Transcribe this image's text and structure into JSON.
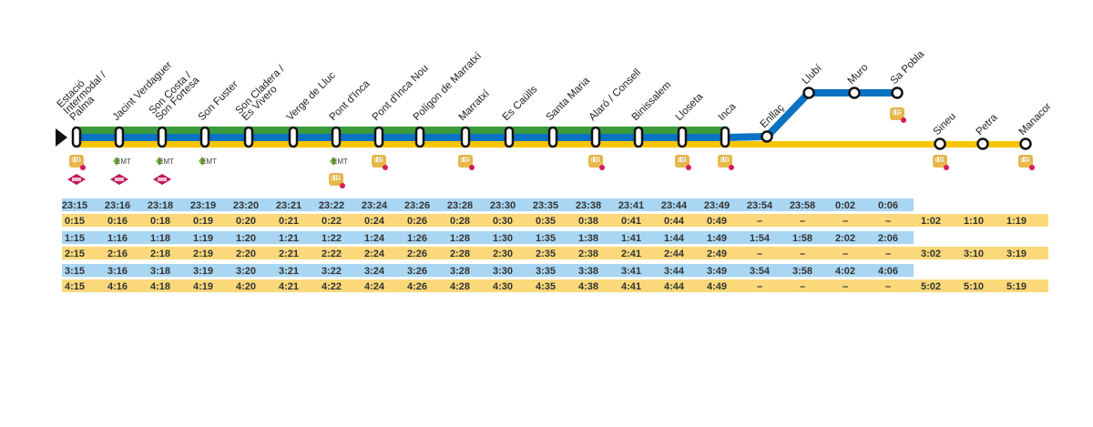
{
  "colors": {
    "green": "#3a9a3c",
    "blue": "#0a72c3",
    "yellow": "#f7c600",
    "row_blue": "#a9d6f2",
    "row_yellow": "#fbd97a",
    "emt": "#7dbb42",
    "tib": "#e8b84a",
    "metro": "#c2185b"
  },
  "stations": [
    {
      "name": [
        "Estació",
        "Intermodal /",
        "Palma"
      ],
      "icons": [
        "tib-bus",
        "metro"
      ]
    },
    {
      "name": [
        "Jacint Verdaguer"
      ],
      "icons": [
        "emt",
        "metro"
      ]
    },
    {
      "name": [
        "Son Costa /",
        "Son Fortesa"
      ],
      "icons": [
        "emt",
        "metro"
      ]
    },
    {
      "name": [
        "Son Fuster"
      ],
      "icons": [
        "emt"
      ]
    },
    {
      "name": [
        "Son Cladera /",
        "Es Vivero"
      ],
      "icons": []
    },
    {
      "name": [
        "Verge de Lluc"
      ],
      "icons": []
    },
    {
      "name": [
        "Pont d'Inca"
      ],
      "icons": [
        "emt",
        "tib-bus"
      ]
    },
    {
      "name": [
        "Pont d'Inca Nou"
      ],
      "icons": [
        "tib-bus"
      ]
    },
    {
      "name": [
        "Polígon de Marratxí"
      ],
      "icons": []
    },
    {
      "name": [
        "Marratxí"
      ],
      "icons": [
        "tib-bus"
      ]
    },
    {
      "name": [
        "Es Caülls"
      ],
      "icons": []
    },
    {
      "name": [
        "Santa Maria"
      ],
      "icons": []
    },
    {
      "name": [
        "Alaró / Consell"
      ],
      "icons": [
        "tib-bus"
      ]
    },
    {
      "name": [
        "Binissalem"
      ],
      "icons": []
    },
    {
      "name": [
        "Lloseta"
      ],
      "icons": [
        "tib-bus"
      ]
    },
    {
      "name": [
        "Inca"
      ],
      "icons": [
        "tib-bus"
      ]
    },
    {
      "name": [
        "Enllaç"
      ],
      "icons": []
    },
    {
      "name": [
        "Llubí"
      ],
      "icons": []
    },
    {
      "name": [
        "Muro"
      ],
      "icons": []
    },
    {
      "name": [
        "Sa Pobla"
      ],
      "icons": [
        "tib-bus"
      ]
    },
    {
      "name": [
        "Sineu"
      ],
      "icons": [
        "tib-bus"
      ]
    },
    {
      "name": [
        "Petra"
      ],
      "icons": []
    },
    {
      "name": [
        "Manacor"
      ],
      "icons": [
        "tib-bus"
      ]
    }
  ],
  "timetable": [
    {
      "line": "blue",
      "times": [
        "23:15",
        "23:16",
        "23:18",
        "23:19",
        "23:20",
        "23:21",
        "23:22",
        "23:24",
        "23:26",
        "23:28",
        "23:30",
        "23:35",
        "23:38",
        "23:41",
        "23:44",
        "23:49",
        "23:54",
        "23:58",
        "0:02",
        "0:06"
      ]
    },
    {
      "line": "yellow",
      "times": [
        "0:15",
        "0:16",
        "0:18",
        "0:19",
        "0:20",
        "0:21",
        "0:22",
        "0:24",
        "0:26",
        "0:28",
        "0:30",
        "0:35",
        "0:38",
        "0:41",
        "0:44",
        "0:49",
        "–",
        "–",
        "–",
        "–",
        "1:02",
        "1:10",
        "1:19"
      ]
    },
    {
      "line": "blue",
      "times": [
        "1:15",
        "1:16",
        "1:18",
        "1:19",
        "1:20",
        "1:21",
        "1:22",
        "1:24",
        "1:26",
        "1:28",
        "1:30",
        "1:35",
        "1:38",
        "1:41",
        "1:44",
        "1:49",
        "1:54",
        "1:58",
        "2:02",
        "2:06"
      ]
    },
    {
      "line": "yellow",
      "times": [
        "2:15",
        "2:16",
        "2:18",
        "2:19",
        "2:20",
        "2:21",
        "2:22",
        "2:24",
        "2:26",
        "2:28",
        "2:30",
        "2:35",
        "2:38",
        "2:41",
        "2:44",
        "2:49",
        "–",
        "–",
        "–",
        "–",
        "3:02",
        "3:10",
        "3:19"
      ]
    },
    {
      "line": "blue",
      "times": [
        "3:15",
        "3:16",
        "3:18",
        "3:19",
        "3:20",
        "3:21",
        "3:22",
        "3:24",
        "3:26",
        "3:28",
        "3:30",
        "3:35",
        "3:38",
        "3:41",
        "3:44",
        "3:49",
        "3:54",
        "3:58",
        "4:02",
        "4:06"
      ]
    },
    {
      "line": "yellow",
      "times": [
        "4:15",
        "4:16",
        "4:18",
        "4:19",
        "4:20",
        "4:21",
        "4:22",
        "4:24",
        "4:26",
        "4:28",
        "4:30",
        "4:35",
        "4:38",
        "4:41",
        "4:44",
        "4:49",
        "–",
        "–",
        "–",
        "–",
        "5:02",
        "5:10",
        "5:19"
      ]
    }
  ],
  "icon_labels": {
    "emt": "EMT",
    "tib": "TIB"
  }
}
